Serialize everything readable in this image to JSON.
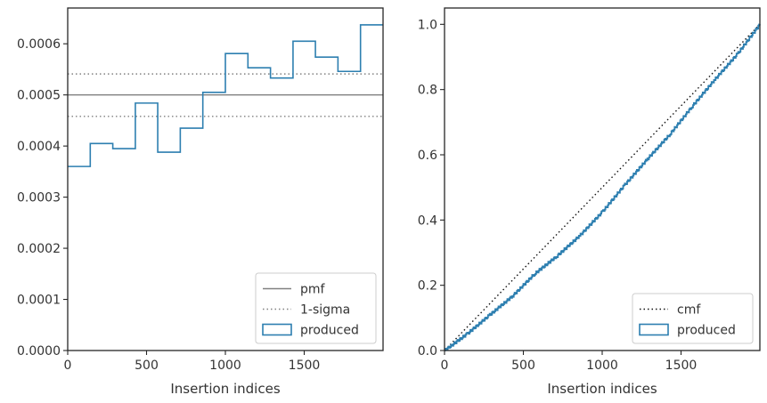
{
  "colors": {
    "produced": "#2d7fb0",
    "pmf": "#808080",
    "cmf": "#111111",
    "frame": "#262626"
  },
  "chart_data": [
    {
      "type": "histogram-step",
      "xlabel": "Insertion indices",
      "ylabel": "",
      "xlim": [
        0,
        2000
      ],
      "ylim": [
        0,
        0.00067
      ],
      "xticks": [
        0,
        500,
        1000,
        1500
      ],
      "xtick_labels": [
        "0",
        "500",
        "1000",
        "1500"
      ],
      "yticks": [
        0,
        0.0001,
        0.0002,
        0.0003,
        0.0004,
        0.0005,
        0.0006
      ],
      "ytick_labels": [
        "0.0000",
        "0.0001",
        "0.0002",
        "0.0003",
        "0.0004",
        "0.0005",
        "0.0006"
      ],
      "bin_edges": [
        0,
        143,
        286,
        429,
        571,
        714,
        857,
        1000,
        1143,
        1286,
        1429,
        1571,
        1714,
        1857,
        2000
      ],
      "series": [
        {
          "name": "produced",
          "style": "step",
          "values": [
            0.00036,
            0.000405,
            0.000395,
            0.000484,
            0.000388,
            0.000435,
            0.000505,
            0.000581,
            0.000553,
            0.000533,
            0.000605,
            0.000574,
            0.000546,
            0.000637
          ]
        }
      ],
      "hlines": [
        {
          "name": "pmf",
          "y": 0.0005,
          "style": "solid"
        },
        {
          "name": "1-sigma",
          "y": 0.000541,
          "style": "dotted"
        },
        {
          "name": "1-sigma",
          "y": 0.000458,
          "style": "dotted"
        }
      ],
      "legend": {
        "position": "lower-right",
        "entries": [
          "pmf",
          "1-sigma",
          "produced"
        ]
      }
    },
    {
      "type": "line",
      "xlabel": "Insertion indices",
      "ylabel": "",
      "xlim": [
        0,
        2000
      ],
      "ylim": [
        0,
        1.05
      ],
      "xticks": [
        0,
        500,
        1000,
        1500
      ],
      "xtick_labels": [
        "0",
        "500",
        "1000",
        "1500"
      ],
      "yticks": [
        0,
        0.2,
        0.4,
        0.6,
        0.8,
        1.0
      ],
      "ytick_labels": [
        "0.0",
        "0.2",
        "0.4",
        "0.6",
        "0.8",
        "1.0"
      ],
      "series": [
        {
          "name": "cmf",
          "style": "dotted",
          "x": [
            0,
            2000
          ],
          "y": [
            0,
            1.0
          ]
        },
        {
          "name": "produced",
          "style": "step",
          "x": [
            0,
            143,
            286,
            429,
            571,
            714,
            857,
            1000,
            1143,
            1286,
            1429,
            1571,
            1714,
            1857,
            2000
          ],
          "y": [
            0,
            0.051,
            0.109,
            0.166,
            0.235,
            0.29,
            0.352,
            0.425,
            0.508,
            0.587,
            0.663,
            0.749,
            0.831,
            0.909,
            1.0
          ]
        }
      ],
      "legend": {
        "position": "lower-right",
        "entries": [
          "cmf",
          "produced"
        ]
      }
    }
  ]
}
